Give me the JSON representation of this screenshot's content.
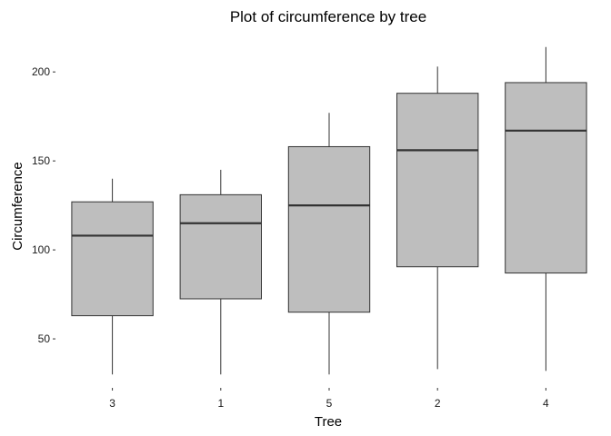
{
  "chart_data": {
    "type": "box",
    "title": "Plot of circumference by tree",
    "xlabel": "Tree",
    "ylabel": "Circumference",
    "categories": [
      "3",
      "1",
      "5",
      "2",
      "4"
    ],
    "boxes": [
      {
        "category": "3",
        "min": 30,
        "q1": 63,
        "median": 108,
        "q3": 127,
        "max": 140
      },
      {
        "category": "1",
        "min": 30,
        "q1": 72.5,
        "median": 115,
        "q3": 131,
        "max": 145
      },
      {
        "category": "5",
        "min": 30,
        "q1": 65,
        "median": 125,
        "q3": 158,
        "max": 177
      },
      {
        "category": "2",
        "min": 33,
        "q1": 90.5,
        "median": 156,
        "q3": 188,
        "max": 203
      },
      {
        "category": "4",
        "min": 32,
        "q1": 87,
        "median": 167,
        "q3": 194,
        "max": 214
      }
    ],
    "yticks": [
      50,
      100,
      150,
      200
    ],
    "ylim": [
      24,
      220
    ],
    "grid": false,
    "legend": "none",
    "colors": {
      "box_fill": "#bebebe",
      "box_stroke": "#333333",
      "median": "#333333",
      "whisker": "#333333"
    }
  }
}
